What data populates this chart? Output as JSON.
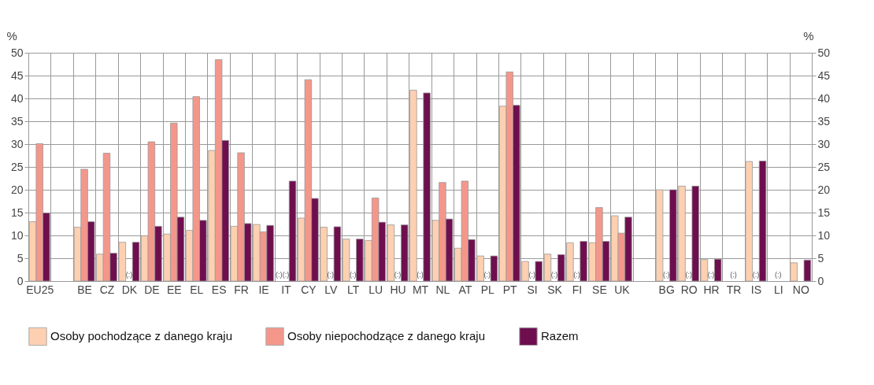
{
  "chart_data": {
    "type": "bar",
    "ylabel": "%",
    "y2label": "%",
    "categories": [
      "EU25",
      null,
      "BE",
      "CZ",
      "DK",
      "DE",
      "EE",
      "EL",
      "ES",
      "FR",
      "IE",
      "IT",
      "CY",
      "LV",
      "LT",
      "LU",
      "HU",
      "MT",
      "NL",
      "AT",
      "PL",
      "PT",
      "SI",
      "SK",
      "FI",
      "SE",
      "UK",
      null,
      "BG",
      "RO",
      "HR",
      "TR",
      "IS",
      "LI",
      "NO"
    ],
    "series": [
      {
        "name": "Osoby pochodzące z danego kraju",
        "color": "#fdd0b1",
        "values": [
          13,
          null,
          11.8,
          5.9,
          8.5,
          9.9,
          10.3,
          11.1,
          28.6,
          12,
          12.4,
          null,
          13.8,
          11.8,
          9.2,
          8.9,
          12.3,
          41.8,
          13.3,
          7.2,
          5.5,
          38.3,
          4.3,
          5.9,
          8.4,
          8.4,
          14.3,
          null,
          20,
          20.8,
          4.7,
          null,
          26.2,
          null,
          4
        ],
        "value_labels": [
          null,
          null,
          null,
          null,
          null,
          null,
          null,
          null,
          null,
          null,
          null,
          "(:)",
          null,
          null,
          null,
          null,
          null,
          null,
          null,
          null,
          null,
          null,
          null,
          null,
          null,
          null,
          null,
          null,
          null,
          null,
          null,
          null,
          null,
          null,
          null
        ]
      },
      {
        "name": "Osoby niepochodzące z danego kraju",
        "color": "#f4978a",
        "values": [
          30.1,
          null,
          24.5,
          28,
          null,
          30.5,
          34.6,
          40.4,
          48.5,
          28.1,
          10.8,
          null,
          44.1,
          null,
          null,
          18.2,
          null,
          null,
          21.6,
          21.9,
          null,
          45.8,
          null,
          null,
          null,
          16.1,
          10.5,
          null,
          null,
          null,
          null,
          null,
          null,
          null,
          null
        ],
        "value_labels": [
          null,
          null,
          null,
          null,
          "(:)",
          null,
          null,
          null,
          null,
          null,
          null,
          "(:)",
          null,
          "(:)",
          "(:)",
          null,
          "(:)",
          "(:)",
          null,
          null,
          "(:)",
          null,
          "(:)",
          "(:)",
          "(:)",
          null,
          null,
          null,
          "(:)",
          "(:)",
          "(:)",
          "(:)",
          "(:)",
          "(:)",
          null
        ]
      },
      {
        "name": "Razem",
        "color": "#6e0e4f",
        "values": [
          14.9,
          null,
          13,
          6.1,
          8.5,
          12,
          14,
          13.3,
          30.8,
          12.6,
          12.2,
          21.9,
          18.1,
          11.9,
          9.2,
          12.9,
          12.3,
          41.2,
          13.6,
          9.1,
          5.5,
          38.5,
          4.3,
          5.8,
          8.7,
          8.7,
          14,
          null,
          20,
          20.8,
          4.8,
          null,
          26.3,
          null,
          4.6
        ]
      }
    ],
    "ylim": [
      0,
      50
    ],
    "yticks": [
      0,
      5,
      10,
      15,
      20,
      25,
      30,
      35,
      40,
      45,
      50
    ],
    "y2lim": [
      0,
      50
    ],
    "y2ticks": [
      0,
      5,
      10,
      15,
      20,
      25,
      30,
      35,
      40,
      45,
      50
    ],
    "grid": true,
    "legend": "bottom"
  }
}
